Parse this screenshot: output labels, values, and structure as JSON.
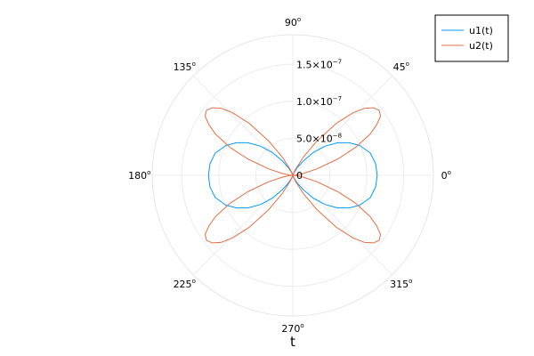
{
  "chart_data": {
    "type": "line",
    "projection": "polar",
    "xlabel": "t",
    "grid": true,
    "legend_position": "top-right",
    "rlim": [
      0,
      1.9e-07
    ],
    "angular_ticks": [
      {
        "deg": 0,
        "label": "0"
      },
      {
        "deg": 45,
        "label": "45"
      },
      {
        "deg": 90,
        "label": "90"
      },
      {
        "deg": 135,
        "label": "135"
      },
      {
        "deg": 180,
        "label": "180"
      },
      {
        "deg": 225,
        "label": "225"
      },
      {
        "deg": 270,
        "label": "270"
      },
      {
        "deg": 315,
        "label": "315"
      }
    ],
    "radial_ticks": [
      {
        "value": 0,
        "mantissa": "0",
        "exponent": ""
      },
      {
        "value": 5e-08,
        "mantissa": "5.0×10",
        "exponent": "−8"
      },
      {
        "value": 1e-07,
        "mantissa": "1.0×10",
        "exponent": "−7"
      },
      {
        "value": 1.5e-07,
        "mantissa": "1.5×10",
        "exponent": "−7"
      }
    ],
    "series": [
      {
        "name": "u1(t)",
        "color": "#009AFA",
        "points": [
          [
            0,
            1.14e-07
          ],
          [
            8,
            1.13e-07
          ],
          [
            16,
            1.09e-07
          ],
          [
            24,
            9.9e-08
          ],
          [
            30,
            8.8e-08
          ],
          [
            36,
            7.5e-08
          ],
          [
            42,
            5.9e-08
          ],
          [
            48,
            4.2e-08
          ],
          [
            54,
            2.4e-08
          ],
          [
            60,
            1.2e-08
          ],
          [
            68,
            4e-09
          ],
          [
            80,
            8e-10
          ],
          [
            90,
            0
          ],
          [
            100,
            8e-10
          ],
          [
            112,
            4e-09
          ],
          [
            120,
            1.2e-08
          ],
          [
            126,
            2.4e-08
          ],
          [
            132,
            4.2e-08
          ],
          [
            138,
            5.9e-08
          ],
          [
            144,
            7.5e-08
          ],
          [
            150,
            8.8e-08
          ],
          [
            156,
            9.9e-08
          ],
          [
            164,
            1.09e-07
          ],
          [
            172,
            1.13e-07
          ],
          [
            180,
            1.14e-07
          ],
          [
            188,
            1.13e-07
          ],
          [
            196,
            1.09e-07
          ],
          [
            204,
            9.9e-08
          ],
          [
            210,
            8.8e-08
          ],
          [
            216,
            7.5e-08
          ],
          [
            222,
            5.9e-08
          ],
          [
            228,
            4.2e-08
          ],
          [
            234,
            2.4e-08
          ],
          [
            240,
            1.2e-08
          ],
          [
            248,
            4e-09
          ],
          [
            260,
            8e-10
          ],
          [
            270,
            0
          ],
          [
            280,
            8e-10
          ],
          [
            292,
            4e-09
          ],
          [
            300,
            1.2e-08
          ],
          [
            306,
            2.4e-08
          ],
          [
            312,
            4.2e-08
          ],
          [
            318,
            5.9e-08
          ],
          [
            324,
            7.5e-08
          ],
          [
            330,
            8.8e-08
          ],
          [
            336,
            9.9e-08
          ],
          [
            344,
            1.09e-07
          ],
          [
            352,
            1.13e-07
          ],
          [
            360,
            1.14e-07
          ]
        ]
      },
      {
        "name": "u2(t)",
        "color": "#E26F46",
        "points": [
          [
            0,
            0
          ],
          [
            5,
            4e-09
          ],
          [
            10,
            1.4e-08
          ],
          [
            15,
            3.4e-08
          ],
          [
            20,
            6.5e-08
          ],
          [
            24,
            9.3e-08
          ],
          [
            28,
            1.18e-07
          ],
          [
            31,
            1.32e-07
          ],
          [
            34,
            1.43e-07
          ],
          [
            37,
            1.46e-07
          ],
          [
            40,
            1.42e-07
          ],
          [
            43,
            1.33e-07
          ],
          [
            46,
            1.18e-07
          ],
          [
            50,
            9.2e-08
          ],
          [
            55,
            5.6e-08
          ],
          [
            60,
            2.8e-08
          ],
          [
            66,
            9e-09
          ],
          [
            74,
            2e-09
          ],
          [
            82,
            0
          ],
          [
            90,
            0
          ],
          [
            98,
            0
          ],
          [
            106,
            2e-09
          ],
          [
            114,
            9e-09
          ],
          [
            120,
            2.8e-08
          ],
          [
            125,
            5.6e-08
          ],
          [
            130,
            9.2e-08
          ],
          [
            134,
            1.18e-07
          ],
          [
            137,
            1.33e-07
          ],
          [
            140,
            1.42e-07
          ],
          [
            143,
            1.46e-07
          ],
          [
            146,
            1.43e-07
          ],
          [
            149,
            1.32e-07
          ],
          [
            152,
            1.18e-07
          ],
          [
            156,
            9.3e-08
          ],
          [
            160,
            6.5e-08
          ],
          [
            165,
            3.4e-08
          ],
          [
            170,
            1.4e-08
          ],
          [
            175,
            4e-09
          ],
          [
            180,
            0
          ],
          [
            185,
            4e-09
          ],
          [
            190,
            1.4e-08
          ],
          [
            195,
            3.4e-08
          ],
          [
            200,
            6.5e-08
          ],
          [
            204,
            9.3e-08
          ],
          [
            208,
            1.18e-07
          ],
          [
            211,
            1.32e-07
          ],
          [
            214,
            1.43e-07
          ],
          [
            217,
            1.46e-07
          ],
          [
            220,
            1.42e-07
          ],
          [
            223,
            1.33e-07
          ],
          [
            226,
            1.18e-07
          ],
          [
            230,
            9.2e-08
          ],
          [
            235,
            5.6e-08
          ],
          [
            240,
            2.8e-08
          ],
          [
            246,
            9e-09
          ],
          [
            254,
            2e-09
          ],
          [
            262,
            0
          ],
          [
            270,
            0
          ],
          [
            278,
            0
          ],
          [
            286,
            2e-09
          ],
          [
            294,
            9e-09
          ],
          [
            300,
            2.8e-08
          ],
          [
            305,
            5.6e-08
          ],
          [
            310,
            9.2e-08
          ],
          [
            314,
            1.18e-07
          ],
          [
            317,
            1.33e-07
          ],
          [
            320,
            1.42e-07
          ],
          [
            323,
            1.46e-07
          ],
          [
            326,
            1.43e-07
          ],
          [
            329,
            1.32e-07
          ],
          [
            332,
            1.18e-07
          ],
          [
            336,
            9.3e-08
          ],
          [
            340,
            6.5e-08
          ],
          [
            345,
            3.4e-08
          ],
          [
            350,
            1.4e-08
          ],
          [
            355,
            4e-09
          ],
          [
            360,
            0
          ]
        ]
      }
    ]
  }
}
